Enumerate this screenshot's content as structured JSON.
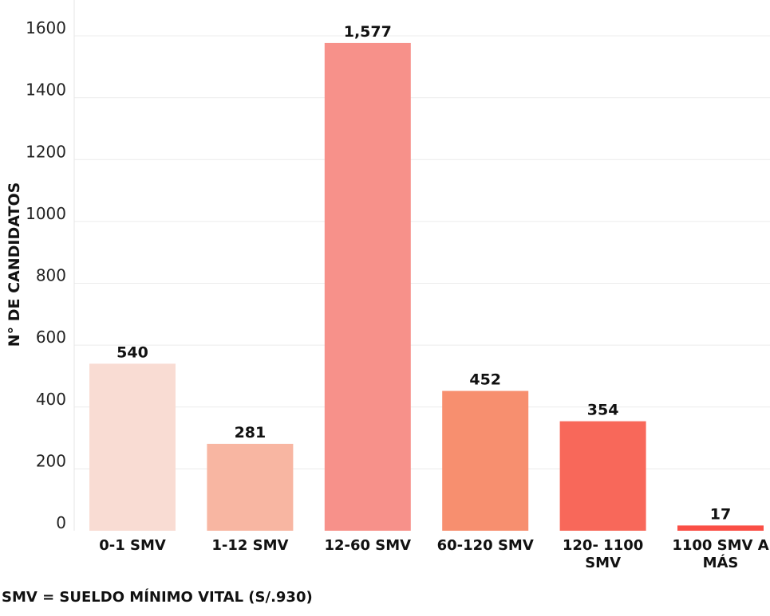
{
  "chart_data": {
    "type": "bar",
    "ylabel": "N° DE CANDIDATOS",
    "xlabel": "",
    "ylim": [
      0,
      1700
    ],
    "yticks": [
      0,
      200,
      400,
      600,
      800,
      1000,
      1200,
      1400,
      1600
    ],
    "grid": true,
    "categories": [
      [
        "0-1 SMV"
      ],
      [
        "1-12 SMV"
      ],
      [
        "12-60 SMV"
      ],
      [
        "60-120 SMV"
      ],
      [
        "120- 1100",
        "SMV"
      ],
      [
        "1100 SMV A",
        "MÁS"
      ]
    ],
    "values": [
      540,
      281,
      1577,
      452,
      354,
      17
    ],
    "value_labels": [
      "540",
      "281",
      "1,577",
      "452",
      "354",
      "17"
    ],
    "colors": [
      "#f9dcd3",
      "#f8b6a2",
      "#f7918a",
      "#f78f6f",
      "#f8685a",
      "#fa4f46"
    ]
  },
  "footnote": "SMV = SUELDO MÍNIMO VITAL (S/.930)"
}
